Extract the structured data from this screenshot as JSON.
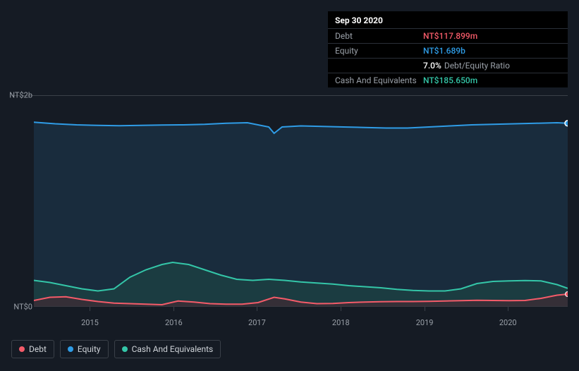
{
  "tooltip": {
    "date": "Sep 30 2020",
    "rows": [
      {
        "label": "Debt",
        "value": "NT$117.899m",
        "color": "#f45b69"
      },
      {
        "label": "Equity",
        "value": "NT$1.689b",
        "color": "#2f9ce6"
      },
      {
        "label": "",
        "value": "7.0%",
        "suffix": "Debt/Equity Ratio",
        "color": "#ffffff"
      },
      {
        "label": "Cash And Equivalents",
        "value": "NT$185.650m",
        "color": "#34c6a8"
      }
    ]
  },
  "chart": {
    "type": "area",
    "background_color": "#151b24",
    "grid_color": "#3a4048",
    "label_color": "#9aa0a8",
    "label_fontsize": 11,
    "y_axis": {
      "ticks": [
        {
          "value": 0,
          "label": "NT$0"
        },
        {
          "value": 2000,
          "label": "NT$2b"
        }
      ],
      "min": 0,
      "max": 2000
    },
    "x_axis": {
      "ticks": [
        {
          "pos": 0.105,
          "label": "2015"
        },
        {
          "pos": 0.262,
          "label": "2016"
        },
        {
          "pos": 0.418,
          "label": "2017"
        },
        {
          "pos": 0.575,
          "label": "2018"
        },
        {
          "pos": 0.732,
          "label": "2019"
        },
        {
          "pos": 0.888,
          "label": "2020"
        }
      ]
    },
    "series": [
      {
        "name": "Equity",
        "color": "#2f9ce6",
        "fill": "#1d3a52",
        "fill_opacity": 0.55,
        "line_width": 2,
        "points": [
          [
            0.0,
            1745
          ],
          [
            0.04,
            1730
          ],
          [
            0.08,
            1720
          ],
          [
            0.12,
            1715
          ],
          [
            0.16,
            1712
          ],
          [
            0.2,
            1715
          ],
          [
            0.24,
            1718
          ],
          [
            0.28,
            1720
          ],
          [
            0.32,
            1725
          ],
          [
            0.36,
            1735
          ],
          [
            0.4,
            1740
          ],
          [
            0.44,
            1700
          ],
          [
            0.45,
            1640
          ],
          [
            0.465,
            1700
          ],
          [
            0.5,
            1710
          ],
          [
            0.54,
            1705
          ],
          [
            0.58,
            1700
          ],
          [
            0.62,
            1695
          ],
          [
            0.66,
            1690
          ],
          [
            0.7,
            1690
          ],
          [
            0.74,
            1700
          ],
          [
            0.78,
            1710
          ],
          [
            0.82,
            1720
          ],
          [
            0.86,
            1725
          ],
          [
            0.9,
            1730
          ],
          [
            0.94,
            1735
          ],
          [
            0.98,
            1740
          ],
          [
            1.0,
            1735
          ]
        ]
      },
      {
        "name": "Cash And Equivalents",
        "color": "#34c6a8",
        "fill": "#1d4a45",
        "fill_opacity": 0.55,
        "line_width": 2,
        "points": [
          [
            0.0,
            250
          ],
          [
            0.03,
            230
          ],
          [
            0.06,
            200
          ],
          [
            0.09,
            170
          ],
          [
            0.12,
            150
          ],
          [
            0.15,
            170
          ],
          [
            0.18,
            280
          ],
          [
            0.21,
            350
          ],
          [
            0.24,
            400
          ],
          [
            0.26,
            420
          ],
          [
            0.29,
            400
          ],
          [
            0.32,
            350
          ],
          [
            0.35,
            300
          ],
          [
            0.38,
            260
          ],
          [
            0.41,
            250
          ],
          [
            0.44,
            260
          ],
          [
            0.47,
            250
          ],
          [
            0.5,
            235
          ],
          [
            0.53,
            225
          ],
          [
            0.56,
            215
          ],
          [
            0.59,
            200
          ],
          [
            0.62,
            190
          ],
          [
            0.65,
            180
          ],
          [
            0.68,
            165
          ],
          [
            0.71,
            155
          ],
          [
            0.74,
            150
          ],
          [
            0.77,
            150
          ],
          [
            0.8,
            170
          ],
          [
            0.83,
            220
          ],
          [
            0.86,
            240
          ],
          [
            0.89,
            245
          ],
          [
            0.92,
            248
          ],
          [
            0.95,
            245
          ],
          [
            0.98,
            210
          ],
          [
            1.0,
            175
          ]
        ]
      },
      {
        "name": "Debt",
        "color": "#f45b69",
        "fill": "#4a2530",
        "fill_opacity": 0.55,
        "line_width": 2,
        "points": [
          [
            0.0,
            60
          ],
          [
            0.03,
            90
          ],
          [
            0.06,
            95
          ],
          [
            0.09,
            70
          ],
          [
            0.12,
            50
          ],
          [
            0.15,
            35
          ],
          [
            0.18,
            30
          ],
          [
            0.21,
            25
          ],
          [
            0.24,
            20
          ],
          [
            0.27,
            55
          ],
          [
            0.3,
            45
          ],
          [
            0.33,
            30
          ],
          [
            0.36,
            25
          ],
          [
            0.39,
            25
          ],
          [
            0.42,
            40
          ],
          [
            0.45,
            90
          ],
          [
            0.47,
            75
          ],
          [
            0.5,
            45
          ],
          [
            0.53,
            30
          ],
          [
            0.56,
            32
          ],
          [
            0.59,
            40
          ],
          [
            0.62,
            45
          ],
          [
            0.65,
            48
          ],
          [
            0.68,
            50
          ],
          [
            0.71,
            50
          ],
          [
            0.74,
            52
          ],
          [
            0.77,
            55
          ],
          [
            0.8,
            58
          ],
          [
            0.83,
            62
          ],
          [
            0.86,
            60
          ],
          [
            0.89,
            58
          ],
          [
            0.92,
            60
          ],
          [
            0.95,
            80
          ],
          [
            0.98,
            110
          ],
          [
            1.0,
            120
          ]
        ]
      }
    ],
    "hover_x": 1.0,
    "hover_marker_color": "#2f9ce6"
  },
  "legend": [
    {
      "label": "Debt",
      "color": "#f45b69"
    },
    {
      "label": "Equity",
      "color": "#2f9ce6"
    },
    {
      "label": "Cash And Equivalents",
      "color": "#34c6a8"
    }
  ]
}
